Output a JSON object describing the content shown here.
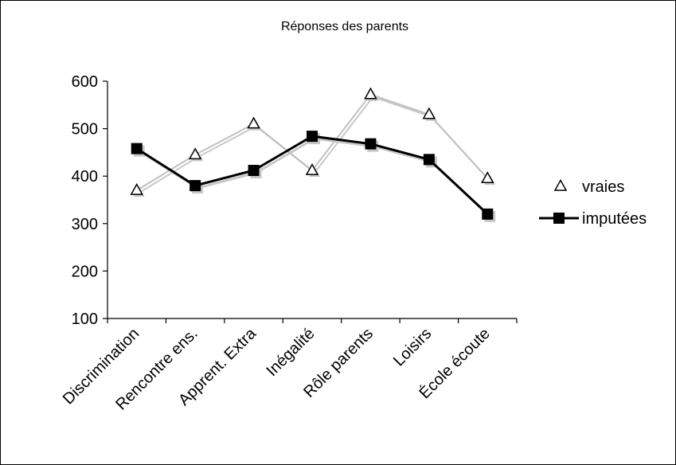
{
  "chart_data": {
    "type": "line",
    "title": "Réponses des parents",
    "xlabel": "",
    "ylabel": "",
    "categories": [
      "Discrimination",
      "Rencontre ens.",
      "Apprent. Extra",
      "Inégalité",
      "Rôle parents",
      "Loisirs",
      "École écoute"
    ],
    "ylim": [
      100,
      600
    ],
    "yticks": [
      100,
      200,
      300,
      400,
      500,
      600
    ],
    "grid": false,
    "legend_position": "right",
    "series": [
      {
        "name": "vraies",
        "values": [
          370,
          445,
          510,
          412,
          572,
          530,
          395
        ],
        "marker": "open-triangle",
        "line_color": "#c0c0c0"
      },
      {
        "name": "imputées",
        "values": [
          458,
          380,
          412,
          484,
          468,
          435,
          320
        ],
        "marker": "filled-square",
        "line_color": "#000000"
      }
    ]
  }
}
